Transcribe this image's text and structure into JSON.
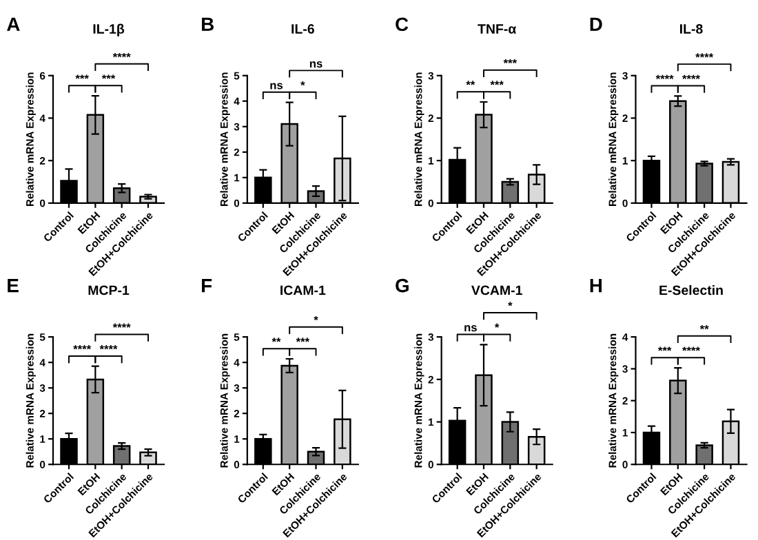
{
  "chart_data": [
    {
      "type": "bar",
      "title": "IL-1β",
      "ylabel": "Relative mRNA Expression",
      "categories": [
        "Control",
        "EtOH",
        "Colchicine",
        "EtOH+Colchicine"
      ],
      "values": [
        1.05,
        4.15,
        0.7,
        0.3
      ],
      "errors": [
        0.55,
        0.9,
        0.2,
        0.1
      ],
      "colors": [
        "#000000",
        "#a0a0a0",
        "#707070",
        "#d9d9d9"
      ],
      "ylim": [
        0,
        6
      ],
      "yticks": [
        0,
        2,
        4,
        6
      ],
      "grid": false,
      "annotations": [
        "A",
        "***",
        "***",
        "****"
      ]
    },
    {
      "type": "bar",
      "title": "IL-6",
      "ylabel": "Relative mRNA Expression",
      "categories": [
        "Control",
        "EtOH",
        "Colchicine",
        "EtOH+Colchicine"
      ],
      "values": [
        1.0,
        3.1,
        0.47,
        1.75
      ],
      "errors": [
        0.3,
        0.85,
        0.2,
        1.65
      ],
      "colors": [
        "#000000",
        "#a0a0a0",
        "#707070",
        "#d9d9d9"
      ],
      "ylim": [
        0,
        5
      ],
      "yticks": [
        0,
        1,
        2,
        3,
        4,
        5
      ],
      "grid": false,
      "annotations": [
        "B",
        "ns",
        "*",
        "ns"
      ]
    },
    {
      "type": "bar",
      "title": "TNF-α",
      "ylabel": "Relative mRNA Expression",
      "categories": [
        "Control",
        "EtOH",
        "Colchicine",
        "EtOH+Colchicine"
      ],
      "values": [
        1.02,
        2.08,
        0.5,
        0.67
      ],
      "errors": [
        0.28,
        0.3,
        0.07,
        0.23
      ],
      "colors": [
        "#000000",
        "#a0a0a0",
        "#707070",
        "#d9d9d9"
      ],
      "ylim": [
        0,
        3
      ],
      "yticks": [
        0,
        1,
        2,
        3
      ],
      "grid": false,
      "annotations": [
        "C",
        "**",
        "***",
        "***"
      ]
    },
    {
      "type": "bar",
      "title": "IL-8",
      "ylabel": "Relative mRNA Expression",
      "categories": [
        "Control",
        "EtOH",
        "Colchicine",
        "EtOH+Colchicine"
      ],
      "values": [
        1.0,
        2.4,
        0.93,
        0.97
      ],
      "errors": [
        0.1,
        0.12,
        0.05,
        0.07
      ],
      "colors": [
        "#000000",
        "#a0a0a0",
        "#707070",
        "#d9d9d9"
      ],
      "ylim": [
        0,
        3
      ],
      "yticks": [
        0,
        1,
        2,
        3
      ],
      "grid": false,
      "annotations": [
        "D",
        "****",
        "****",
        "****"
      ]
    },
    {
      "type": "bar",
      "title": "MCP-1",
      "ylabel": "Relative mRNA Expression",
      "categories": [
        "Control",
        "EtOH",
        "Colchicine",
        "EtOH+Colchicine"
      ],
      "values": [
        1.0,
        3.33,
        0.72,
        0.47
      ],
      "errors": [
        0.22,
        0.52,
        0.12,
        0.13
      ],
      "colors": [
        "#000000",
        "#a0a0a0",
        "#707070",
        "#d9d9d9"
      ],
      "ylim": [
        0,
        5
      ],
      "yticks": [
        0,
        1,
        2,
        3,
        4,
        5
      ],
      "grid": false,
      "annotations": [
        "E",
        "****",
        "****",
        "****"
      ]
    },
    {
      "type": "bar",
      "title": "ICAM-1",
      "ylabel": "Relative mRNA Expression",
      "categories": [
        "Control",
        "EtOH",
        "Colchicine",
        "EtOH+Colchicine"
      ],
      "values": [
        1.0,
        3.87,
        0.5,
        1.77
      ],
      "errors": [
        0.17,
        0.27,
        0.15,
        1.13
      ],
      "colors": [
        "#000000",
        "#a0a0a0",
        "#707070",
        "#d9d9d9"
      ],
      "ylim": [
        0,
        5
      ],
      "yticks": [
        0,
        1,
        2,
        3,
        4,
        5
      ],
      "grid": false,
      "annotations": [
        "F",
        "**",
        "***",
        "*"
      ]
    },
    {
      "type": "bar",
      "title": "VCAM-1",
      "ylabel": "Relative mRNA Expression",
      "categories": [
        "Control",
        "EtOH",
        "Colchicine",
        "EtOH+Colchicine"
      ],
      "values": [
        1.03,
        2.1,
        1.0,
        0.65
      ],
      "errors": [
        0.3,
        0.72,
        0.23,
        0.18
      ],
      "colors": [
        "#000000",
        "#a0a0a0",
        "#707070",
        "#d9d9d9"
      ],
      "ylim": [
        0,
        3
      ],
      "yticks": [
        0,
        1,
        2,
        3
      ],
      "grid": false,
      "annotations": [
        "G",
        "ns",
        "*",
        "*"
      ]
    },
    {
      "type": "bar",
      "title": "E-Selectin",
      "ylabel": "Relative mRNA Expression",
      "categories": [
        "Control",
        "EtOH",
        "Colchicine",
        "EtOH+Colchicine"
      ],
      "values": [
        1.0,
        2.63,
        0.6,
        1.35
      ],
      "errors": [
        0.2,
        0.4,
        0.08,
        0.37
      ],
      "colors": [
        "#000000",
        "#a0a0a0",
        "#707070",
        "#d9d9d9"
      ],
      "ylim": [
        0,
        4
      ],
      "yticks": [
        0,
        1,
        2,
        3,
        4
      ],
      "grid": false,
      "annotations": [
        "H",
        "***",
        "****",
        "**"
      ]
    }
  ]
}
